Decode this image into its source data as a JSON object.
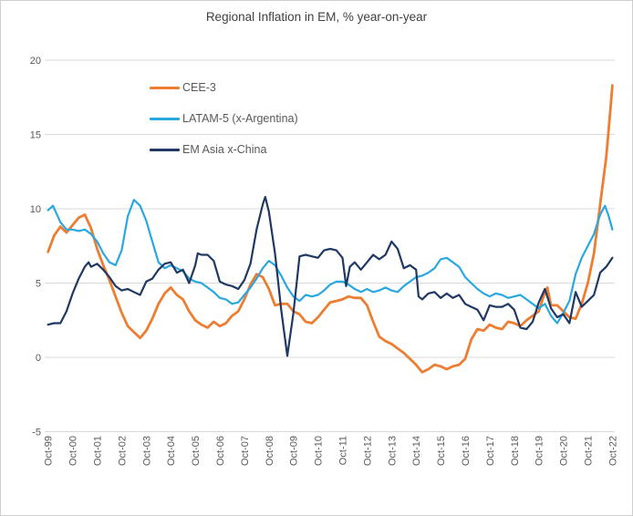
{
  "chart_data": {
    "type": "line",
    "title": "Regional Inflation in EM, % year-on-year",
    "xlabel": "",
    "ylabel": "",
    "ylim": [
      -5,
      20
    ],
    "y_ticks": [
      20,
      15,
      10,
      5,
      0,
      -5
    ],
    "grid": "horizontal",
    "legend_position": "upper-left-inside",
    "x_unit": "years since Oct-1999, monthly series",
    "x_tick_labels": [
      "Oct-99",
      "Oct-00",
      "Oct-01",
      "Oct-02",
      "Oct-03",
      "Oct-04",
      "Oct-05",
      "Oct-06",
      "Oct-07",
      "Oct-08",
      "Oct-09",
      "Oct-10",
      "Oct-11",
      "Oct-12",
      "Oct-13",
      "Oct-14",
      "Oct-15",
      "Oct-16",
      "Oct-17",
      "Oct-18",
      "Oct-19",
      "Oct-20",
      "Oct-21",
      "Oct-22"
    ],
    "colors": {
      "gridline": "#d9d9d9",
      "axis_text": "#595959",
      "title_text": "#404040",
      "border": "#cfcdcd"
    },
    "series": [
      {
        "name": "CEE-3",
        "color": "#ed7d31",
        "width": 2.8,
        "points": [
          [
            0,
            7.1
          ],
          [
            0.25,
            8.2
          ],
          [
            0.5,
            8.8
          ],
          [
            0.75,
            8.4
          ],
          [
            1,
            8.9
          ],
          [
            1.25,
            9.4
          ],
          [
            1.5,
            9.6
          ],
          [
            1.75,
            8.7
          ],
          [
            2,
            7.3
          ],
          [
            2.25,
            6.2
          ],
          [
            2.5,
            5.2
          ],
          [
            2.75,
            4.1
          ],
          [
            3,
            3.0
          ],
          [
            3.25,
            2.1
          ],
          [
            3.5,
            1.7
          ],
          [
            3.75,
            1.3
          ],
          [
            4,
            1.8
          ],
          [
            4.25,
            2.6
          ],
          [
            4.5,
            3.6
          ],
          [
            4.75,
            4.3
          ],
          [
            5,
            4.7
          ],
          [
            5.25,
            4.2
          ],
          [
            5.5,
            3.9
          ],
          [
            5.75,
            3.1
          ],
          [
            6,
            2.5
          ],
          [
            6.25,
            2.2
          ],
          [
            6.5,
            2.0
          ],
          [
            6.75,
            2.4
          ],
          [
            7,
            2.1
          ],
          [
            7.25,
            2.3
          ],
          [
            7.5,
            2.8
          ],
          [
            7.75,
            3.1
          ],
          [
            8,
            3.9
          ],
          [
            8.25,
            4.9
          ],
          [
            8.5,
            5.6
          ],
          [
            8.75,
            5.4
          ],
          [
            9,
            4.6
          ],
          [
            9.25,
            3.5
          ],
          [
            9.5,
            3.6
          ],
          [
            9.75,
            3.6
          ],
          [
            10,
            3.1
          ],
          [
            10.25,
            2.9
          ],
          [
            10.5,
            2.4
          ],
          [
            10.75,
            2.3
          ],
          [
            11,
            2.7
          ],
          [
            11.25,
            3.2
          ],
          [
            11.5,
            3.7
          ],
          [
            11.75,
            3.8
          ],
          [
            12,
            3.9
          ],
          [
            12.25,
            4.1
          ],
          [
            12.5,
            4.0
          ],
          [
            12.75,
            4.0
          ],
          [
            13,
            3.5
          ],
          [
            13.25,
            2.4
          ],
          [
            13.5,
            1.4
          ],
          [
            13.75,
            1.1
          ],
          [
            14,
            0.9
          ],
          [
            14.25,
            0.6
          ],
          [
            14.5,
            0.3
          ],
          [
            14.75,
            -0.1
          ],
          [
            15,
            -0.5
          ],
          [
            15.25,
            -1.0
          ],
          [
            15.5,
            -0.8
          ],
          [
            15.75,
            -0.5
          ],
          [
            16,
            -0.6
          ],
          [
            16.25,
            -0.8
          ],
          [
            16.5,
            -0.6
          ],
          [
            16.75,
            -0.5
          ],
          [
            17,
            -0.1
          ],
          [
            17.25,
            1.2
          ],
          [
            17.5,
            1.9
          ],
          [
            17.75,
            1.8
          ],
          [
            18,
            2.2
          ],
          [
            18.25,
            2.0
          ],
          [
            18.5,
            1.9
          ],
          [
            18.75,
            2.4
          ],
          [
            19,
            2.3
          ],
          [
            19.25,
            2.1
          ],
          [
            19.5,
            2.5
          ],
          [
            19.75,
            2.8
          ],
          [
            20,
            3.1
          ],
          [
            20.25,
            4.4
          ],
          [
            20.35,
            4.7
          ],
          [
            20.5,
            3.5
          ],
          [
            20.75,
            3.5
          ],
          [
            21,
            3.1
          ],
          [
            21.25,
            2.7
          ],
          [
            21.5,
            2.6
          ],
          [
            21.75,
            3.6
          ],
          [
            22,
            5.0
          ],
          [
            22.25,
            7.0
          ],
          [
            22.5,
            10.3
          ],
          [
            22.75,
            13.5
          ],
          [
            22.9,
            16.3
          ],
          [
            23,
            18.3
          ]
        ]
      },
      {
        "name": "LATAM-5 (x-Argentina)",
        "color": "#29a8e0",
        "width": 2.2,
        "points": [
          [
            0,
            9.9
          ],
          [
            0.2,
            10.2
          ],
          [
            0.5,
            9.1
          ],
          [
            0.75,
            8.6
          ],
          [
            1,
            8.6
          ],
          [
            1.25,
            8.5
          ],
          [
            1.5,
            8.6
          ],
          [
            1.75,
            8.3
          ],
          [
            2,
            7.8
          ],
          [
            2.25,
            7.0
          ],
          [
            2.5,
            6.4
          ],
          [
            2.75,
            6.2
          ],
          [
            3,
            7.2
          ],
          [
            3.25,
            9.5
          ],
          [
            3.5,
            10.6
          ],
          [
            3.75,
            10.2
          ],
          [
            4,
            9.2
          ],
          [
            4.25,
            7.8
          ],
          [
            4.5,
            6.4
          ],
          [
            4.75,
            6.0
          ],
          [
            5,
            6.2
          ],
          [
            5.25,
            6.0
          ],
          [
            5.5,
            5.8
          ],
          [
            5.75,
            5.3
          ],
          [
            6,
            5.1
          ],
          [
            6.25,
            5.0
          ],
          [
            6.5,
            4.7
          ],
          [
            6.75,
            4.4
          ],
          [
            7,
            4.0
          ],
          [
            7.25,
            3.9
          ],
          [
            7.5,
            3.6
          ],
          [
            7.75,
            3.7
          ],
          [
            8,
            4.2
          ],
          [
            8.25,
            4.7
          ],
          [
            8.5,
            5.3
          ],
          [
            8.75,
            6.0
          ],
          [
            9,
            6.5
          ],
          [
            9.25,
            6.2
          ],
          [
            9.5,
            5.5
          ],
          [
            9.75,
            4.7
          ],
          [
            10,
            4.1
          ],
          [
            10.25,
            3.8
          ],
          [
            10.5,
            4.2
          ],
          [
            10.75,
            4.1
          ],
          [
            11,
            4.2
          ],
          [
            11.25,
            4.5
          ],
          [
            11.5,
            4.9
          ],
          [
            11.75,
            5.1
          ],
          [
            12,
            5.1
          ],
          [
            12.25,
            4.9
          ],
          [
            12.5,
            4.6
          ],
          [
            12.75,
            4.4
          ],
          [
            13,
            4.6
          ],
          [
            13.25,
            4.4
          ],
          [
            13.5,
            4.5
          ],
          [
            13.75,
            4.7
          ],
          [
            14,
            4.5
          ],
          [
            14.25,
            4.4
          ],
          [
            14.5,
            4.8
          ],
          [
            14.75,
            5.1
          ],
          [
            15,
            5.4
          ],
          [
            15.25,
            5.5
          ],
          [
            15.5,
            5.7
          ],
          [
            15.75,
            6.0
          ],
          [
            16,
            6.6
          ],
          [
            16.25,
            6.7
          ],
          [
            16.5,
            6.4
          ],
          [
            16.75,
            6.1
          ],
          [
            17,
            5.4
          ],
          [
            17.25,
            5.0
          ],
          [
            17.5,
            4.6
          ],
          [
            17.75,
            4.3
          ],
          [
            18,
            4.1
          ],
          [
            18.25,
            4.3
          ],
          [
            18.5,
            4.2
          ],
          [
            18.75,
            4.0
          ],
          [
            19,
            4.1
          ],
          [
            19.25,
            4.2
          ],
          [
            19.5,
            3.9
          ],
          [
            19.75,
            3.6
          ],
          [
            20,
            3.3
          ],
          [
            20.25,
            3.6
          ],
          [
            20.5,
            2.8
          ],
          [
            20.75,
            2.3
          ],
          [
            21,
            3.0
          ],
          [
            21.25,
            3.8
          ],
          [
            21.5,
            5.6
          ],
          [
            21.75,
            6.7
          ],
          [
            22,
            7.5
          ],
          [
            22.25,
            8.3
          ],
          [
            22.5,
            9.6
          ],
          [
            22.7,
            10.2
          ],
          [
            22.85,
            9.5
          ],
          [
            23,
            8.6
          ]
        ]
      },
      {
        "name": "EM Asia x-China",
        "color": "#1f3864",
        "width": 2.2,
        "points": [
          [
            0,
            2.2
          ],
          [
            0.25,
            2.3
          ],
          [
            0.5,
            2.3
          ],
          [
            0.75,
            3.1
          ],
          [
            1,
            4.3
          ],
          [
            1.25,
            5.3
          ],
          [
            1.5,
            6.1
          ],
          [
            1.65,
            6.4
          ],
          [
            1.75,
            6.1
          ],
          [
            2,
            6.3
          ],
          [
            2.25,
            5.9
          ],
          [
            2.5,
            5.4
          ],
          [
            2.75,
            4.8
          ],
          [
            3,
            4.5
          ],
          [
            3.25,
            4.6
          ],
          [
            3.5,
            4.4
          ],
          [
            3.75,
            4.2
          ],
          [
            4,
            5.1
          ],
          [
            4.25,
            5.3
          ],
          [
            4.5,
            5.9
          ],
          [
            4.75,
            6.3
          ],
          [
            5,
            6.4
          ],
          [
            5.25,
            5.7
          ],
          [
            5.5,
            5.9
          ],
          [
            5.75,
            5.0
          ],
          [
            6,
            6.2
          ],
          [
            6.1,
            7.0
          ],
          [
            6.25,
            6.9
          ],
          [
            6.5,
            6.9
          ],
          [
            6.75,
            6.5
          ],
          [
            7,
            5.1
          ],
          [
            7.25,
            4.9
          ],
          [
            7.5,
            4.8
          ],
          [
            7.75,
            4.6
          ],
          [
            8,
            5.2
          ],
          [
            8.25,
            6.3
          ],
          [
            8.5,
            8.6
          ],
          [
            8.75,
            10.3
          ],
          [
            8.85,
            10.8
          ],
          [
            9,
            9.8
          ],
          [
            9.25,
            7.0
          ],
          [
            9.5,
            3.2
          ],
          [
            9.75,
            0.1
          ],
          [
            10,
            3.0
          ],
          [
            10.25,
            6.8
          ],
          [
            10.5,
            6.9
          ],
          [
            10.75,
            6.8
          ],
          [
            11,
            6.7
          ],
          [
            11.25,
            7.2
          ],
          [
            11.5,
            7.3
          ],
          [
            11.75,
            7.2
          ],
          [
            12,
            6.7
          ],
          [
            12.15,
            4.8
          ],
          [
            12.3,
            6.1
          ],
          [
            12.5,
            6.4
          ],
          [
            12.75,
            5.9
          ],
          [
            13,
            6.4
          ],
          [
            13.25,
            6.9
          ],
          [
            13.5,
            6.6
          ],
          [
            13.75,
            6.9
          ],
          [
            14,
            7.8
          ],
          [
            14.25,
            7.3
          ],
          [
            14.5,
            6.0
          ],
          [
            14.75,
            6.2
          ],
          [
            15,
            5.9
          ],
          [
            15.1,
            4.1
          ],
          [
            15.25,
            3.9
          ],
          [
            15.5,
            4.3
          ],
          [
            15.75,
            4.4
          ],
          [
            16,
            4.0
          ],
          [
            16.25,
            4.3
          ],
          [
            16.5,
            4.0
          ],
          [
            16.75,
            4.2
          ],
          [
            17,
            3.6
          ],
          [
            17.25,
            3.4
          ],
          [
            17.5,
            3.2
          ],
          [
            17.75,
            2.5
          ],
          [
            18,
            3.5
          ],
          [
            18.25,
            3.4
          ],
          [
            18.5,
            3.4
          ],
          [
            18.75,
            3.6
          ],
          [
            19,
            3.2
          ],
          [
            19.25,
            2.0
          ],
          [
            19.5,
            1.9
          ],
          [
            19.75,
            2.4
          ],
          [
            20,
            3.7
          ],
          [
            20.25,
            4.6
          ],
          [
            20.5,
            3.3
          ],
          [
            20.75,
            2.7
          ],
          [
            21,
            2.9
          ],
          [
            21.25,
            2.3
          ],
          [
            21.5,
            4.4
          ],
          [
            21.75,
            3.4
          ],
          [
            22,
            3.8
          ],
          [
            22.25,
            4.2
          ],
          [
            22.5,
            5.7
          ],
          [
            22.75,
            6.1
          ],
          [
            23,
            6.7
          ]
        ]
      }
    ]
  }
}
